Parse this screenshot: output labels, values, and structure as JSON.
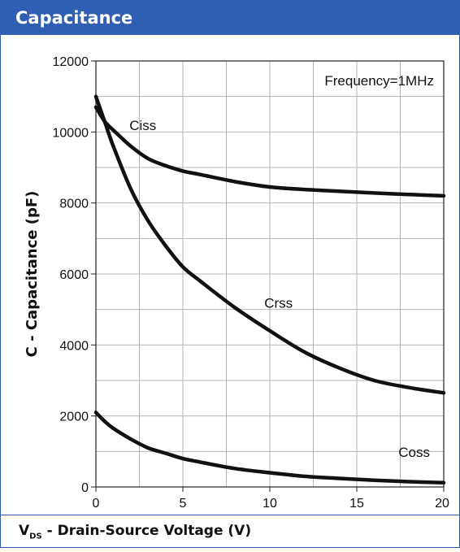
{
  "panel": {
    "title": "Capacitance",
    "xlabel_main": "V",
    "xlabel_sub": "DS",
    "xlabel_rest": " - Drain-Source Voltage (V)"
  },
  "chart_data": {
    "type": "line",
    "title": "",
    "xlabel": "VDS - Drain-Source Voltage (V)",
    "ylabel": "C - Capacitance (pF)",
    "xlim": [
      0,
      20
    ],
    "ylim": [
      0,
      12000
    ],
    "xticks": [
      0,
      5,
      10,
      15,
      20
    ],
    "yticks": [
      0,
      2000,
      4000,
      6000,
      8000,
      10000,
      12000
    ],
    "grid": true,
    "annotation": "Frequency=1MHz",
    "series": [
      {
        "name": "Ciss",
        "x": [
          0,
          0.5,
          1,
          2,
          3,
          4,
          5,
          6,
          8,
          10,
          12,
          14,
          16,
          18,
          20
        ],
        "y": [
          10700,
          10300,
          10050,
          9600,
          9250,
          9050,
          8900,
          8800,
          8600,
          8450,
          8380,
          8330,
          8280,
          8240,
          8200
        ]
      },
      {
        "name": "Crss",
        "x": [
          0,
          0.5,
          1,
          2,
          3,
          4,
          5,
          6,
          8,
          10,
          12,
          14,
          16,
          18,
          20
        ],
        "y": [
          11000,
          10300,
          9600,
          8400,
          7500,
          6800,
          6200,
          5800,
          5050,
          4400,
          3800,
          3350,
          3000,
          2800,
          2650
        ]
      },
      {
        "name": "Coss",
        "x": [
          0,
          0.5,
          1,
          2,
          3,
          4,
          5,
          6,
          8,
          10,
          12,
          14,
          16,
          18,
          20
        ],
        "y": [
          2100,
          1850,
          1650,
          1350,
          1100,
          950,
          800,
          700,
          520,
          400,
          300,
          240,
          190,
          150,
          120
        ]
      }
    ],
    "labels": [
      {
        "text": "Ciss",
        "x": 2.7,
        "y": 10050
      },
      {
        "text": "Crss",
        "x": 10.5,
        "y": 5050
      },
      {
        "text": "Coss",
        "x": 18.3,
        "y": 850
      }
    ]
  }
}
